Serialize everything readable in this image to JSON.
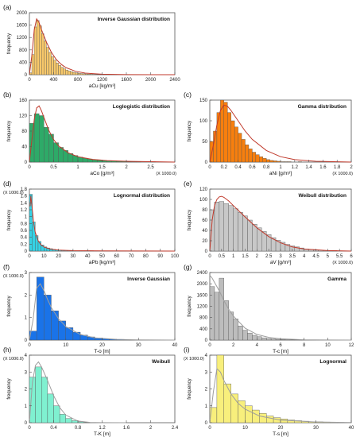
{
  "chart_data": [
    {
      "id": "a",
      "type": "histogram",
      "letter": "(a)",
      "title": "Inverse Gaussian distribution",
      "xlabel": "aCu [kg/m³]",
      "ylabel": "frequency",
      "x_scale_label": "",
      "y_scale_label": "",
      "xlim": [
        0,
        2400
      ],
      "ylim": [
        0,
        2000
      ],
      "xticks": [
        0,
        400,
        800,
        1200,
        1600,
        2000,
        2400
      ],
      "yticks": [
        0,
        400,
        800,
        1200,
        1600,
        2000
      ],
      "bar_color": "#f7c86a",
      "curve_color": "#c0392b",
      "bins": {
        "start": 0,
        "width": 40,
        "values": [
          60,
          650,
          1540,
          1750,
          1580,
          1320,
          1090,
          880,
          720,
          580,
          470,
          380,
          300,
          240,
          190,
          150,
          120,
          95,
          75,
          60,
          48,
          38,
          30,
          24,
          19,
          15,
          12,
          10,
          8,
          6,
          5,
          4,
          3,
          3,
          2,
          2
        ]
      },
      "curve": {
        "x": [
          0,
          40,
          80,
          120,
          160,
          200,
          280,
          360,
          440,
          520,
          600,
          760,
          920,
          1200,
          1600,
          2000,
          2400
        ],
        "y": [
          0,
          600,
          1450,
          1800,
          1680,
          1450,
          1050,
          730,
          500,
          340,
          230,
          110,
          50,
          15,
          3,
          1,
          0
        ]
      }
    },
    {
      "id": "b",
      "type": "histogram",
      "letter": "(b)",
      "title": "Loglogistic distribution",
      "xlabel": "aCo [g/m³]",
      "ylabel": "frequency",
      "x_scale_label": "(X 1000.0)",
      "y_scale_label": "",
      "xlim": [
        0,
        3
      ],
      "ylim": [
        0,
        160
      ],
      "xticks": [
        0,
        0.5,
        1,
        1.5,
        2,
        2.5,
        3
      ],
      "yticks": [
        0,
        40,
        80,
        120,
        160
      ],
      "bar_color": "#2eaa68",
      "curve_color": "#c0392b",
      "bins": {
        "start": 0,
        "width": 0.1,
        "values": [
          100,
          125,
          120,
          90,
          72,
          50,
          38,
          30,
          22,
          17,
          13,
          10,
          8,
          6,
          5,
          4,
          3,
          3,
          2,
          2,
          1,
          1,
          1,
          0,
          0,
          1,
          0,
          0,
          0,
          0
        ]
      },
      "curve": {
        "x": [
          0,
          0.05,
          0.1,
          0.15,
          0.2,
          0.25,
          0.3,
          0.4,
          0.5,
          0.6,
          0.8,
          1.0,
          1.3,
          1.6,
          2.0,
          2.5,
          3.0
        ],
        "y": [
          0,
          55,
          110,
          140,
          145,
          132,
          115,
          82,
          58,
          42,
          24,
          14,
          7,
          4,
          2,
          1,
          0
        ]
      }
    },
    {
      "id": "c",
      "type": "histogram",
      "letter": "(c)",
      "title": "Gamma distribution",
      "xlabel": "aNi [g/m³]",
      "ylabel": "frequency",
      "x_scale_label": "(X 1000.0)",
      "y_scale_label": "",
      "xlim": [
        0,
        2
      ],
      "ylim": [
        0,
        150
      ],
      "xticks": [
        0,
        0.2,
        0.4,
        0.6,
        0.8,
        1,
        1.2,
        1.4,
        1.6,
        1.8,
        2
      ],
      "ytick_labels": [
        "0",
        "50",
        "100",
        "150"
      ],
      "yticks": [
        0,
        50,
        100,
        150
      ],
      "bar_color": "#f77f0e",
      "curve_color": "#c0392b",
      "bins": {
        "start": 0,
        "width": 0.05,
        "values": [
          50,
          75,
          120,
          150,
          145,
          120,
          100,
          85,
          70,
          55,
          42,
          32,
          24,
          18,
          13,
          9,
          6,
          4,
          3,
          2,
          1,
          1,
          1,
          0,
          0,
          1,
          0,
          0,
          0,
          0
        ]
      },
      "curve": {
        "x": [
          0,
          0.05,
          0.1,
          0.15,
          0.2,
          0.25,
          0.3,
          0.4,
          0.5,
          0.6,
          0.8,
          1.0,
          1.2,
          1.5,
          2.0
        ],
        "y": [
          0,
          40,
          90,
          125,
          138,
          135,
          125,
          100,
          75,
          55,
          28,
          13,
          6,
          2,
          0
        ]
      }
    },
    {
      "id": "d",
      "type": "histogram",
      "letter": "(d)",
      "title": "Lognormal distribution",
      "xlabel": "aPb [kg/m³]",
      "ylabel": "frequency",
      "x_scale_label": "",
      "y_scale_label": "(X 1000.0)",
      "xlim": [
        0,
        100
      ],
      "ylim": [
        0,
        1.8
      ],
      "xticks": [
        0,
        10,
        20,
        30,
        40,
        50,
        60,
        70,
        80,
        90,
        100
      ],
      "yticks": [
        0,
        0.2,
        0.4,
        0.6,
        0.8,
        1,
        1.2,
        1.4,
        1.6,
        1.8
      ],
      "bar_color": "#35d3e6",
      "curve_color": "#c0392b",
      "bins": {
        "start": 0,
        "width": 2,
        "values": [
          1.65,
          0.85,
          0.45,
          0.28,
          0.18,
          0.12,
          0.09,
          0.07,
          0.05,
          0.04,
          0.03,
          0.03,
          0.02,
          0.02,
          0.02,
          0.01,
          0.01,
          0.01,
          0.01,
          0.01,
          0.01,
          0.01,
          0.005,
          0.005,
          0.005,
          0.005,
          0.005,
          0.005,
          0.005,
          0.005,
          0.003,
          0.003,
          0.003,
          0.003,
          0.003,
          0.003,
          0.003,
          0.003,
          0.003,
          0.003,
          0.002,
          0.002,
          0.002,
          0.002,
          0.002,
          0.002,
          0.002,
          0.002,
          0.002,
          0.002
        ]
      },
      "curve": {
        "x": [
          0.5,
          1,
          2,
          3,
          4,
          6,
          8,
          10,
          14,
          20,
          30,
          50,
          100
        ],
        "y": [
          1.3,
          1.6,
          1.2,
          0.8,
          0.55,
          0.3,
          0.18,
          0.12,
          0.06,
          0.03,
          0.012,
          0.004,
          0.001
        ]
      }
    },
    {
      "id": "e",
      "type": "histogram",
      "letter": "(e)",
      "title": "Weibull distribution",
      "xlabel": "aV [g/m³]",
      "ylabel": "frequency",
      "x_scale_label": "(X 1000.0)",
      "y_scale_label": "",
      "xlim": [
        0,
        6
      ],
      "ylim": [
        0,
        120
      ],
      "xticks": [
        0,
        0.5,
        1,
        1.5,
        2,
        2.5,
        3,
        3.5,
        4,
        4.5,
        5,
        5.5,
        6
      ],
      "yticks": [
        0,
        20,
        40,
        60,
        80,
        100,
        120
      ],
      "bar_color": "#c8c8c8",
      "curve_color": "#c0392b",
      "bins": {
        "start": 0,
        "width": 0.2,
        "values": [
          80,
          95,
          96,
          92,
          88,
          82,
          75,
          68,
          60,
          52,
          45,
          38,
          32,
          26,
          21,
          17,
          13,
          10,
          8,
          6,
          4,
          3,
          2,
          2,
          1,
          1,
          1,
          0,
          0,
          0
        ]
      },
      "curve": {
        "x": [
          0,
          0.1,
          0.2,
          0.3,
          0.4,
          0.5,
          0.6,
          0.8,
          1.0,
          1.5,
          2.0,
          2.5,
          3.0,
          3.5,
          4.0,
          5.0,
          6.0
        ],
        "y": [
          0,
          60,
          88,
          100,
          105,
          106,
          104,
          97,
          88,
          66,
          45,
          28,
          16,
          8,
          4,
          1,
          0
        ]
      }
    },
    {
      "id": "f",
      "type": "histogram",
      "letter": "(f)",
      "title": "Inverse Gaussian",
      "xlabel": "T-o [m]",
      "ylabel": "frequency",
      "x_scale_label": "",
      "y_scale_label": "(X 1000.0)",
      "xlim": [
        0,
        40
      ],
      "ylim": [
        0,
        3
      ],
      "xticks": [
        0,
        10,
        20,
        30,
        40
      ],
      "yticks": [
        0,
        1,
        2,
        3
      ],
      "bar_color": "#1a73e8",
      "curve_color": "#9e9e9e",
      "bins": {
        "start": 0,
        "width": 2,
        "values": [
          0.4,
          2.8,
          2.0,
          1.3,
          0.85,
          0.55,
          0.35,
          0.22,
          0.14,
          0.09,
          0.06,
          0.04,
          0.03,
          0.02,
          0.01,
          0.01,
          0.005,
          0.005,
          0.003,
          0.002
        ]
      },
      "curve": {
        "x": [
          0,
          1,
          2,
          3,
          4,
          5,
          6,
          8,
          10,
          14,
          18,
          24,
          30,
          40
        ],
        "y": [
          0,
          0.9,
          2.3,
          2.5,
          2.2,
          1.8,
          1.45,
          0.95,
          0.6,
          0.25,
          0.1,
          0.03,
          0.01,
          0
        ]
      }
    },
    {
      "id": "g",
      "type": "histogram",
      "letter": "(g)",
      "title": "Gamma",
      "xlabel": "T-c [m]",
      "ylabel": "frequency",
      "x_scale_label": "",
      "y_scale_label": "",
      "xlim": [
        0,
        12
      ],
      "ylim": [
        0,
        2400
      ],
      "xticks": [
        0,
        2,
        4,
        6,
        8,
        10,
        12
      ],
      "yticks": [
        0,
        400,
        800,
        1200,
        1600,
        2000,
        2400
      ],
      "bar_color": "#bdbdbd",
      "curve_color": "#9e9e9e",
      "bins": {
        "start": 0,
        "width": 0.4,
        "values": [
          1900,
          1700,
          2200,
          1400,
          1000,
          750,
          500,
          350,
          250,
          170,
          120,
          80,
          55,
          40,
          28,
          20,
          14,
          10,
          7,
          5,
          4,
          3,
          2,
          2,
          1,
          1,
          1,
          1,
          0,
          0
        ]
      },
      "curve": {
        "x": [
          0,
          0.2,
          0.4,
          0.8,
          1.2,
          1.6,
          2.0,
          3.0,
          4.0,
          5.0,
          6.0,
          8.0,
          10.0,
          12.0
        ],
        "y": [
          2300,
          2200,
          2050,
          1750,
          1400,
          1100,
          850,
          420,
          200,
          95,
          45,
          10,
          2,
          0
        ]
      }
    },
    {
      "id": "h",
      "type": "histogram",
      "letter": "(h)",
      "title": "Weibull",
      "xlabel": "T-K [m]",
      "ylabel": "frequency",
      "x_scale_label": "",
      "y_scale_label": "(X 1000.0)",
      "xlim": [
        0,
        2.4
      ],
      "ylim": [
        0,
        4
      ],
      "xticks": [
        0,
        0.4,
        0.8,
        1.2,
        1.6,
        2.0,
        2.4
      ],
      "yticks": [
        0,
        1,
        2,
        3,
        4
      ],
      "bar_color": "#7ff0d0",
      "curve_color": "#9e9e9e",
      "bins": {
        "start": 0,
        "width": 0.1,
        "values": [
          2.7,
          3.3,
          2.7,
          1.7,
          1.0,
          0.5,
          0.25,
          0.12,
          0.05,
          0.02,
          0.01,
          0.005
        ]
      },
      "curve": {
        "x": [
          0,
          0.05,
          0.1,
          0.15,
          0.2,
          0.3,
          0.4,
          0.5,
          0.6,
          0.8,
          1.0,
          1.2,
          1.6
        ],
        "y": [
          0,
          2.4,
          3.4,
          3.6,
          3.3,
          2.5,
          1.6,
          0.9,
          0.45,
          0.1,
          0.02,
          0.005,
          0
        ]
      }
    },
    {
      "id": "i",
      "type": "histogram",
      "letter": "(i)",
      "title": "Lognormal",
      "xlabel": "T-s [m]",
      "ylabel": "frequency",
      "x_scale_label": "",
      "y_scale_label": "(X 1000.0)",
      "xlim": [
        0,
        40
      ],
      "ylim": [
        0,
        4
      ],
      "xticks": [
        0,
        10,
        20,
        30,
        40
      ],
      "yticks": [
        0,
        1,
        2,
        3,
        4
      ],
      "bar_color": "#f8ef7c",
      "curve_color": "#9e9e9e",
      "bins": {
        "start": 0,
        "width": 2,
        "values": [
          0.9,
          4.1,
          2.3,
          1.7,
          1.3,
          1.0,
          0.75,
          0.55,
          0.4,
          0.3,
          0.22,
          0.16,
          0.12,
          0.09,
          0.06,
          0.05,
          0.04,
          0.03,
          0.02,
          0.01
        ]
      },
      "curve": {
        "x": [
          0,
          1,
          2,
          3,
          4,
          6,
          8,
          10,
          14,
          20,
          30,
          40
        ],
        "y": [
          0,
          1.8,
          3.2,
          3.0,
          2.5,
          1.7,
          1.15,
          0.8,
          0.4,
          0.15,
          0.04,
          0.01
        ]
      }
    }
  ]
}
